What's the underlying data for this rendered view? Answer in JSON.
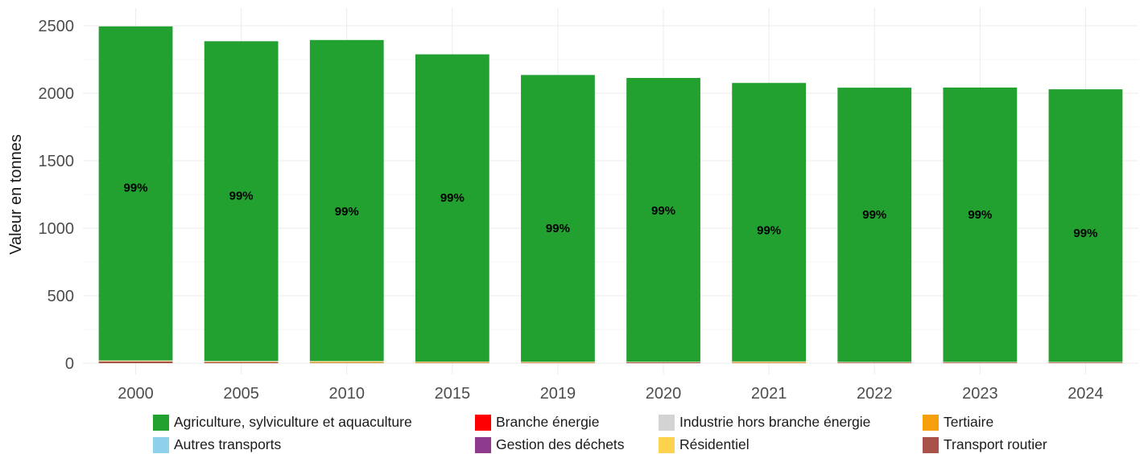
{
  "chart_data": {
    "type": "bar",
    "stacked": true,
    "title": "",
    "xlabel": "",
    "ylabel": "Valeur en tonnes",
    "ylim": [
      0,
      2500
    ],
    "yticks": [
      0,
      500,
      1000,
      1500,
      2000,
      2500
    ],
    "grid": true,
    "legend_position": "bottom",
    "categories": [
      "2000",
      "2005",
      "2010",
      "2015",
      "2019",
      "2020",
      "2021",
      "2022",
      "2023",
      "2024"
    ],
    "series": [
      {
        "name": "Transport routier",
        "color": "#a9524a",
        "values": [
          12,
          8,
          4,
          3,
          3,
          6,
          3,
          5,
          5,
          5
        ]
      },
      {
        "name": "Résidentiel",
        "color": "#ffd24d",
        "values": [
          4,
          4,
          9,
          6,
          5,
          2,
          7,
          2,
          2,
          2
        ]
      },
      {
        "name": "Industrie hors branche énergie",
        "color": "#d3d3d3",
        "values": [
          5,
          5,
          3,
          3,
          3,
          3,
          3,
          3,
          3,
          3
        ]
      },
      {
        "name": "Agriculture, sylviculture et aquaculture",
        "color": "#22a130",
        "values": [
          2474,
          2368,
          2378,
          2276,
          2124,
          2102,
          2063,
          2031,
          2032,
          2019
        ]
      }
    ],
    "legend": [
      {
        "name": "Agriculture, sylviculture et aquaculture",
        "color": "#22a130"
      },
      {
        "name": "Branche énergie",
        "color": "#ff0000"
      },
      {
        "name": "Industrie hors branche énergie",
        "color": "#d3d3d3"
      },
      {
        "name": "Tertiaire",
        "color": "#f5a00a"
      },
      {
        "name": "Autres transports",
        "color": "#8fd1ed"
      },
      {
        "name": "Gestion des déchets",
        "color": "#8e3a8f"
      },
      {
        "name": "Résidentiel",
        "color": "#ffd24d"
      },
      {
        "name": "Transport routier",
        "color": "#a9524a"
      }
    ],
    "data_labels": {
      "text": "99%",
      "positions": [
        1300,
        1240,
        1125,
        1225,
        1000,
        1130,
        985,
        1100,
        1100,
        965
      ]
    }
  }
}
